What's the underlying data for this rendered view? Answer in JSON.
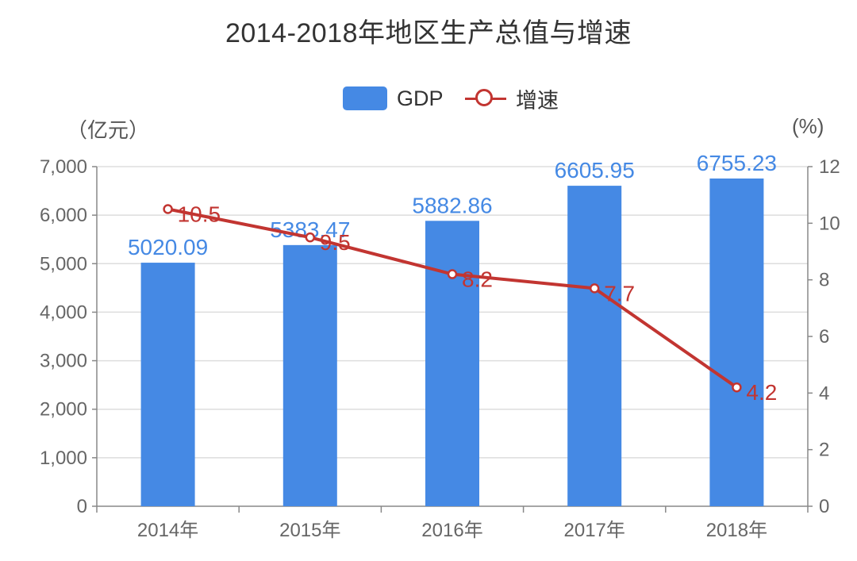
{
  "chart_data": {
    "type": "bar",
    "title": "2014-2018年地区生产总值与增速",
    "categories": [
      "2014年",
      "2015年",
      "2016年",
      "2017年",
      "2018年"
    ],
    "legend": {
      "position": "top-center"
    },
    "y_left": {
      "name": "（亿元）",
      "ylim": [
        0,
        7000
      ],
      "ticks": [
        "0",
        "1,000",
        "2,000",
        "3,000",
        "4,000",
        "5,000",
        "6,000",
        "7,000"
      ]
    },
    "y_right": {
      "name": "(%)",
      "ylim": [
        0,
        12
      ],
      "ticks": [
        "0",
        "2",
        "4",
        "6",
        "8",
        "10",
        "12"
      ]
    },
    "grid": true,
    "series": [
      {
        "name": "GDP",
        "type": "bar",
        "axis": "left",
        "color": "#4589e4",
        "values": [
          5020.09,
          5383.47,
          5882.86,
          6605.95,
          6755.23
        ],
        "labels": [
          "5020.09",
          "5383.47",
          "5882.86",
          "6605.95",
          "6755.23"
        ]
      },
      {
        "name": "增速",
        "type": "line",
        "axis": "right",
        "color": "#c23531",
        "values": [
          10.5,
          9.5,
          8.2,
          7.7,
          4.2
        ],
        "labels": [
          "10.5",
          "9.5",
          "8.2",
          "7.7",
          "4.2"
        ]
      }
    ]
  }
}
